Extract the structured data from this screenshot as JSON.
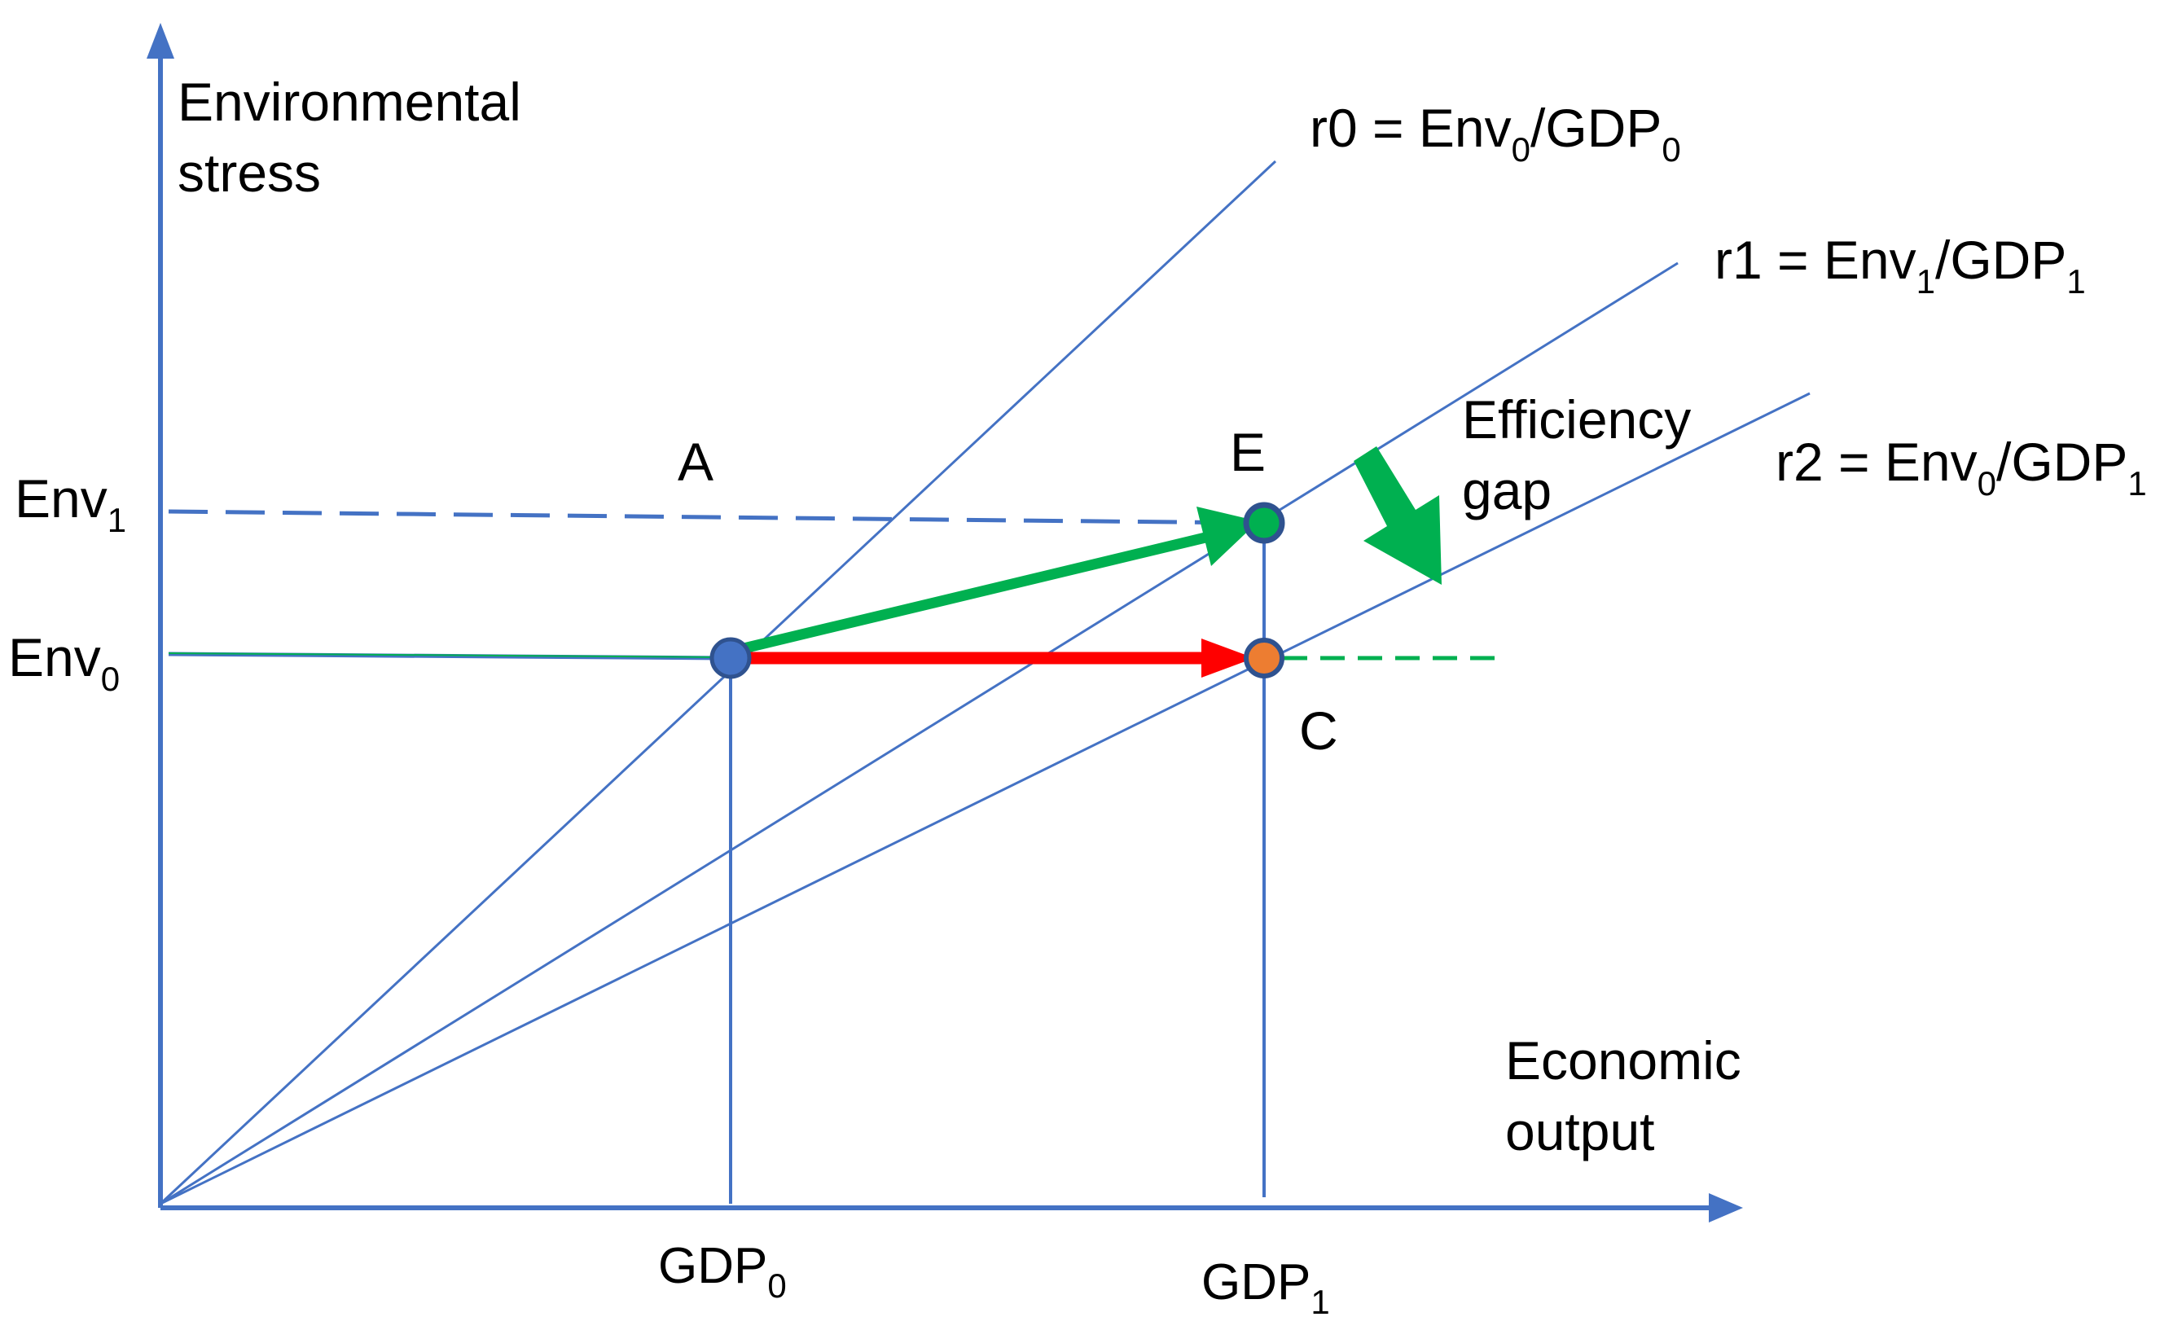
{
  "axes": {
    "y_label_line1": "Environmental",
    "y_label_line2": "stress",
    "x_label_line1": "Economic",
    "x_label_line2": "output"
  },
  "ticks": {
    "env1": {
      "base": "Env",
      "sub": "1"
    },
    "env0": {
      "base": "Env",
      "sub": "0"
    },
    "gdp0": {
      "base": "GDP",
      "sub": "0"
    },
    "gdp1": {
      "base": "GDP",
      "sub": "1"
    }
  },
  "rays": {
    "r0": {
      "name": "r0 = Env",
      "s1": "0",
      "mid": "/GDP",
      "s2": "0"
    },
    "r1": {
      "name": "r1 = Env",
      "s1": "1",
      "mid": "/GDP",
      "s2": "1"
    },
    "r2": {
      "name": "r2 = Env",
      "s1": "0",
      "mid": "/GDP",
      "s2": "1"
    }
  },
  "points": {
    "A": "A",
    "E": "E",
    "C": "C"
  },
  "annotation": {
    "line1": "Efficiency",
    "line2": "gap"
  },
  "colors": {
    "axis": "#4472c4",
    "green": "#00b050",
    "red": "#ff0000",
    "orange": "#ed7d31",
    "point_blue": "#4472c4"
  }
}
